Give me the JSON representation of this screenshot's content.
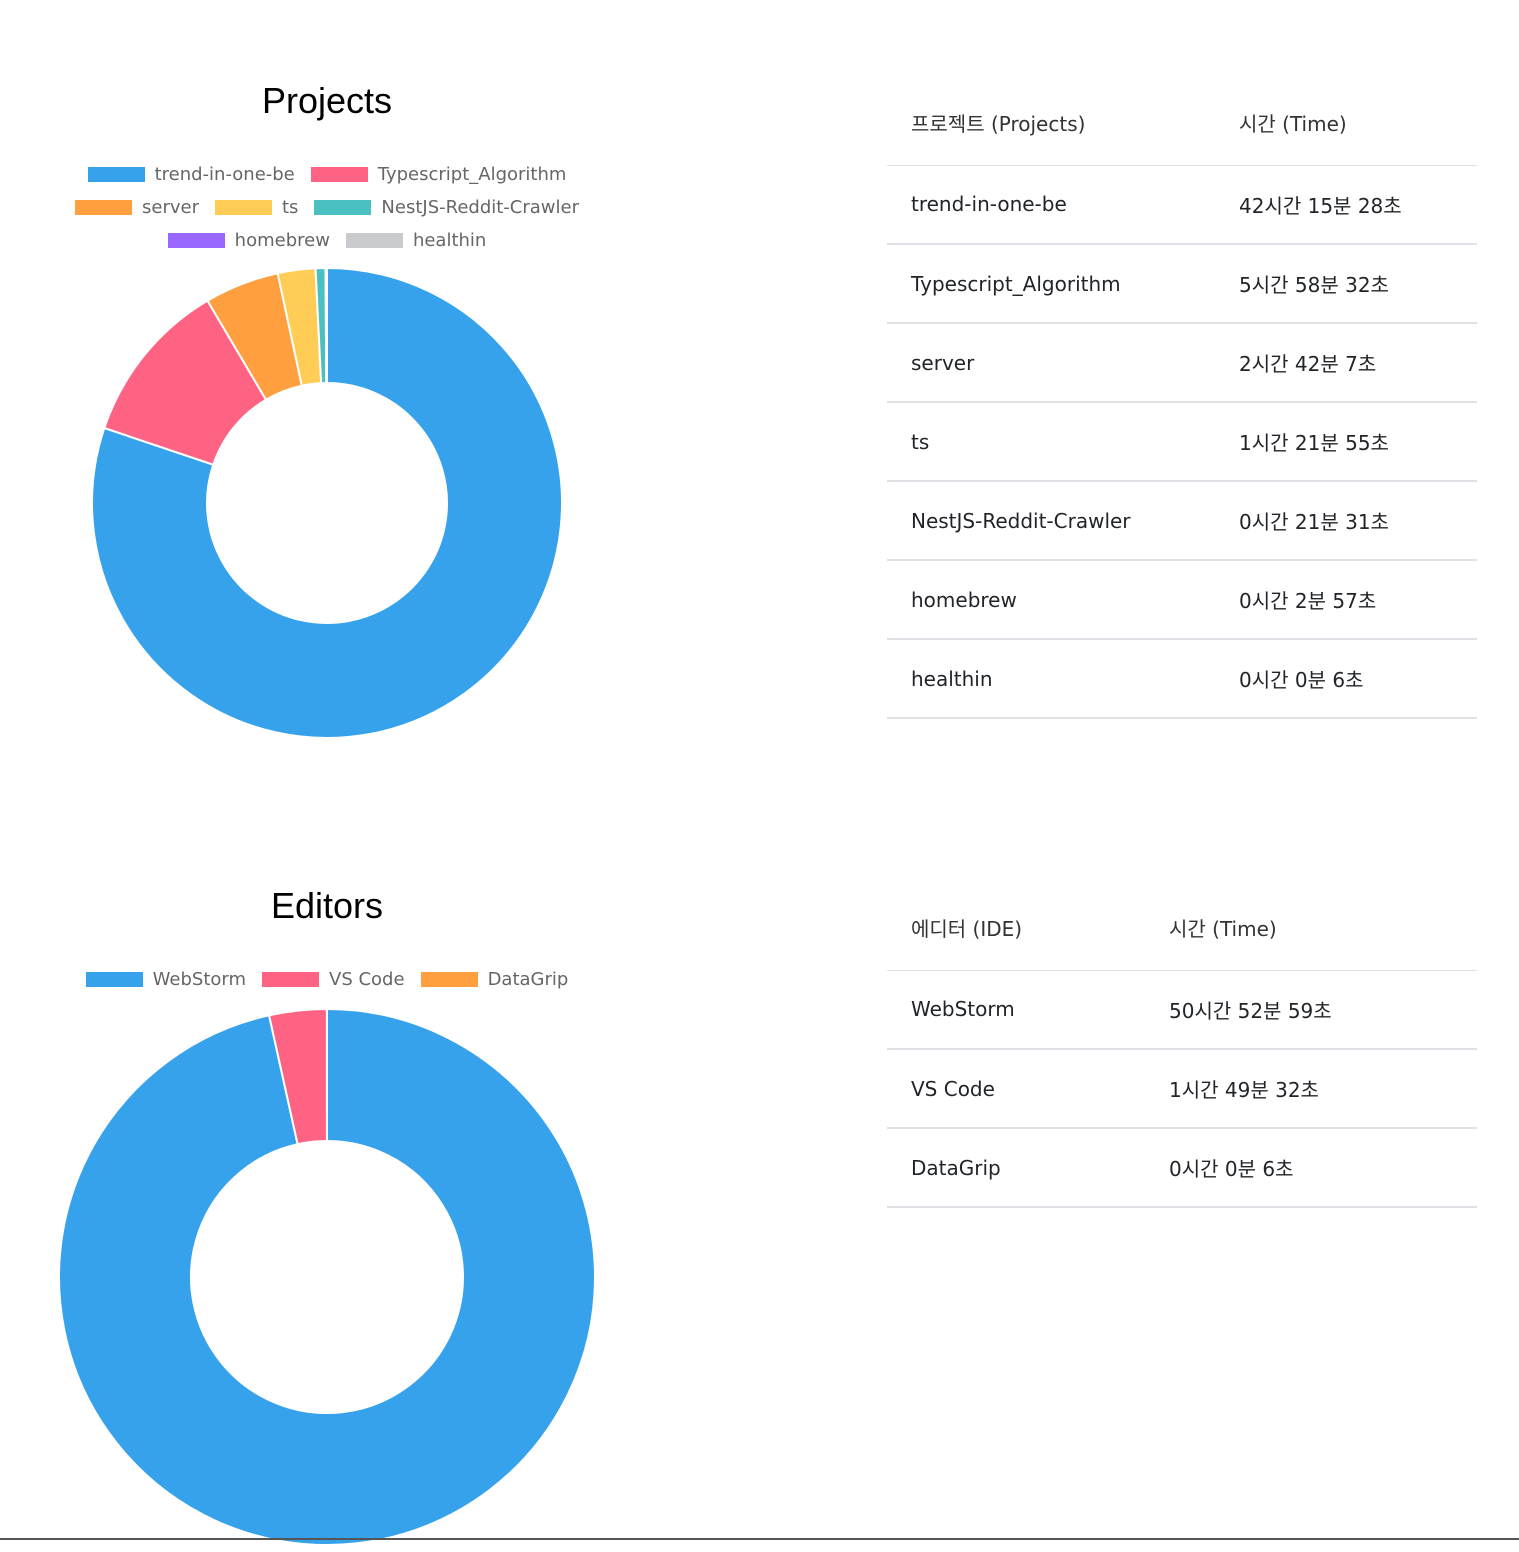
{
  "chart_data": [
    {
      "type": "pie",
      "title": "Projects",
      "categories": [
        "trend-in-one-be",
        "Typescript_Algorithm",
        "server",
        "ts",
        "NestJS-Reddit-Crawler",
        "homebrew",
        "healthin"
      ],
      "values_seconds": [
        152128,
        21512,
        9727,
        4915,
        1291,
        177,
        6
      ],
      "colors": [
        "#36A2EB",
        "#FF6384",
        "#FF9F40",
        "#FFCD56",
        "#4BC0C0",
        "#9966FF",
        "#C9CBCF"
      ],
      "legend_placement": "top"
    },
    {
      "type": "pie",
      "title": "Editors",
      "categories": [
        "WebStorm",
        "VS Code",
        "DataGrip"
      ],
      "values_seconds": [
        183179,
        6572,
        6
      ],
      "colors": [
        "#36A2EB",
        "#FF6384",
        "#FF9F40"
      ],
      "legend_placement": "top"
    }
  ],
  "projects_table": {
    "header_name": "프로젝트 (Projects)",
    "header_time": "시간 (Time)",
    "rows": [
      {
        "name": "trend-in-one-be",
        "time": "42시간 15분 28초"
      },
      {
        "name": "Typescript_Algorithm",
        "time": "5시간 58분 32초"
      },
      {
        "name": "server",
        "time": "2시간 42분 7초"
      },
      {
        "name": "ts",
        "time": "1시간 21분 55초"
      },
      {
        "name": "NestJS-Reddit-Crawler",
        "time": "0시간 21분 31초"
      },
      {
        "name": "homebrew",
        "time": "0시간 2분 57초"
      },
      {
        "name": "healthin",
        "time": "0시간 0분 6초"
      }
    ]
  },
  "editors_table": {
    "header_name": "에디터 (IDE)",
    "header_time": "시간 (Time)",
    "rows": [
      {
        "name": "WebStorm",
        "time": "50시간 52분 59초"
      },
      {
        "name": "VS Code",
        "time": "1시간 49분 32초"
      },
      {
        "name": "DataGrip",
        "time": "0시간 0분 6초"
      }
    ]
  }
}
